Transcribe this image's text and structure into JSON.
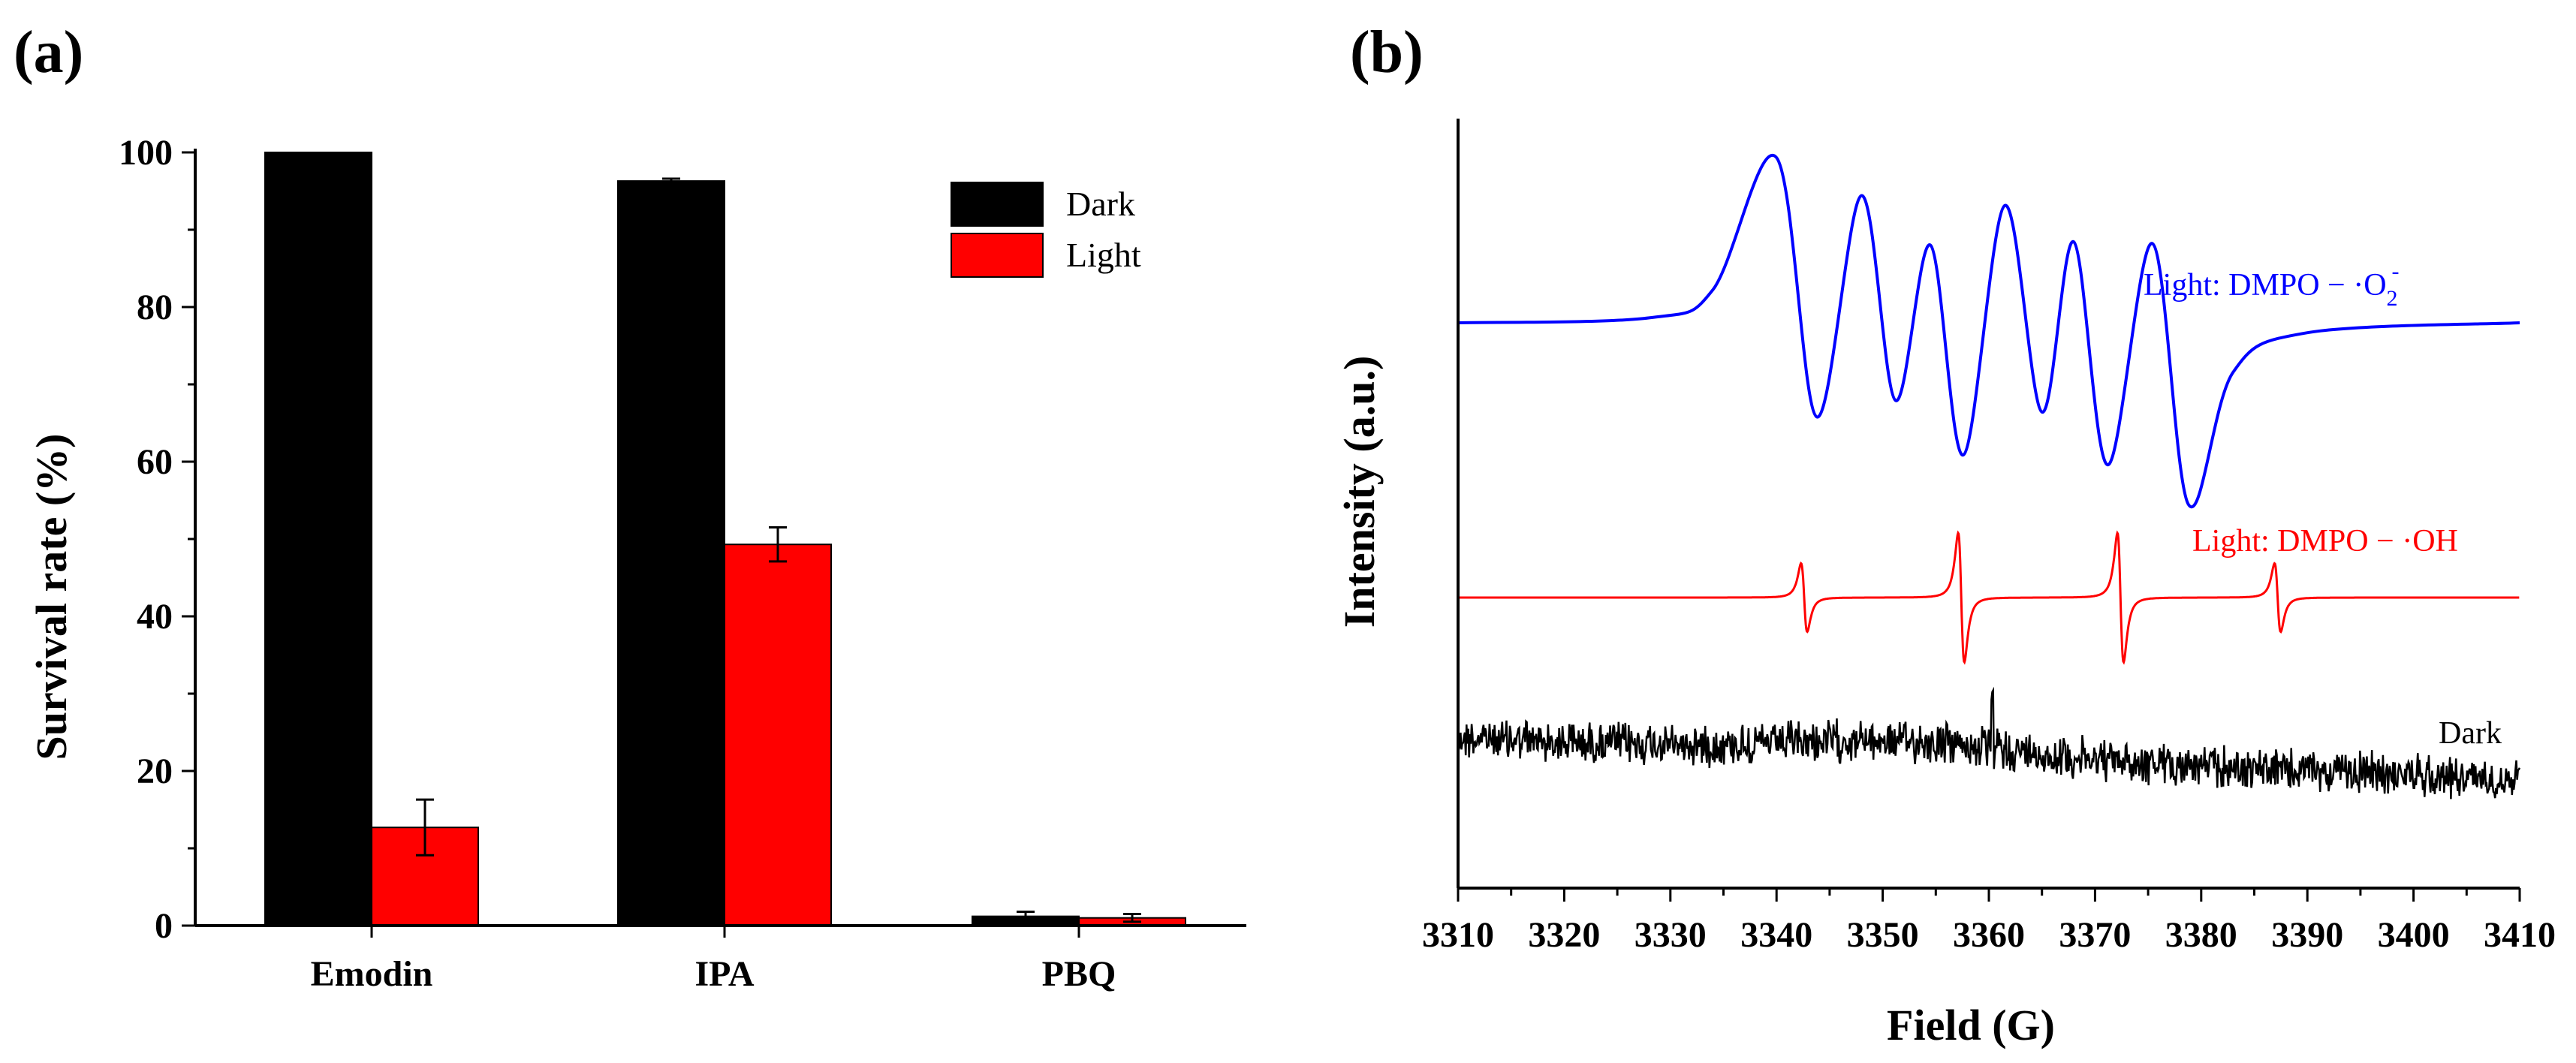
{
  "colors": {
    "dark": "#000000",
    "light": "#ff0000",
    "o2_trace": "#0000ff",
    "oh_trace": "#ff0000",
    "dark_trace": "#000000"
  },
  "chart_data": [
    {
      "panel": "(a)",
      "type": "bar",
      "ylabel": "Survival rate (%)",
      "xlabel": "",
      "categories": [
        "Emodin",
        "IPA",
        "PBQ"
      ],
      "ylim": [
        0,
        100
      ],
      "yticks": [
        0,
        20,
        40,
        60,
        80,
        100
      ],
      "legend_position": "top-right",
      "series": [
        {
          "name": "Dark",
          "values": [
            100,
            96.3,
            1.2
          ],
          "errors": [
            0,
            0.3,
            0.6
          ]
        },
        {
          "name": "Light",
          "values": [
            12.7,
            49.3,
            1.0
          ],
          "errors": [
            3.6,
            2.2,
            0.5
          ]
        }
      ]
    },
    {
      "panel": "(b)",
      "type": "line",
      "xlabel": "Field (G)",
      "ylabel": "Intensity (a.u.)",
      "xlim": [
        3310,
        3410
      ],
      "xticks": [
        3310,
        3320,
        3330,
        3340,
        3350,
        3360,
        3370,
        3380,
        3390,
        3400,
        3410
      ],
      "series": [
        {
          "name": "Light: DMPO − ·O2−",
          "label_main": "Light: DMPO − ·O",
          "label_sub": "2",
          "label_sup": "-",
          "color": "#0000ff",
          "baseline": 0,
          "peaks": [
            {
              "x": 3340.0,
              "y": 1.0
            },
            {
              "x": 3343.8,
              "y": -0.57
            },
            {
              "x": 3348.0,
              "y": 0.77
            },
            {
              "x": 3351.2,
              "y": -0.47
            },
            {
              "x": 3354.5,
              "y": 0.47
            },
            {
              "x": 3357.6,
              "y": -0.8
            },
            {
              "x": 3361.5,
              "y": 0.71
            },
            {
              "x": 3365.0,
              "y": -0.54
            },
            {
              "x": 3368.0,
              "y": 0.49
            },
            {
              "x": 3371.2,
              "y": -0.86
            },
            {
              "x": 3375.4,
              "y": 0.48
            },
            {
              "x": 3378.8,
              "y": -1.1
            }
          ]
        },
        {
          "name": "Light: DMPO − ·OH",
          "label_main": "Light: DMPO − ·OH",
          "color": "#ff0000",
          "baseline": 0,
          "lines": [
            {
              "center": 3342.6,
              "amp": 0.45
            },
            {
              "center": 3357.4,
              "amp": 0.85
            },
            {
              "center": 3372.4,
              "amp": 0.85
            },
            {
              "center": 3387.2,
              "amp": 0.45
            }
          ]
        },
        {
          "name": "Dark",
          "label_main": "Dark",
          "color": "#000000",
          "baseline": 0,
          "note": "noise trace"
        }
      ]
    }
  ]
}
